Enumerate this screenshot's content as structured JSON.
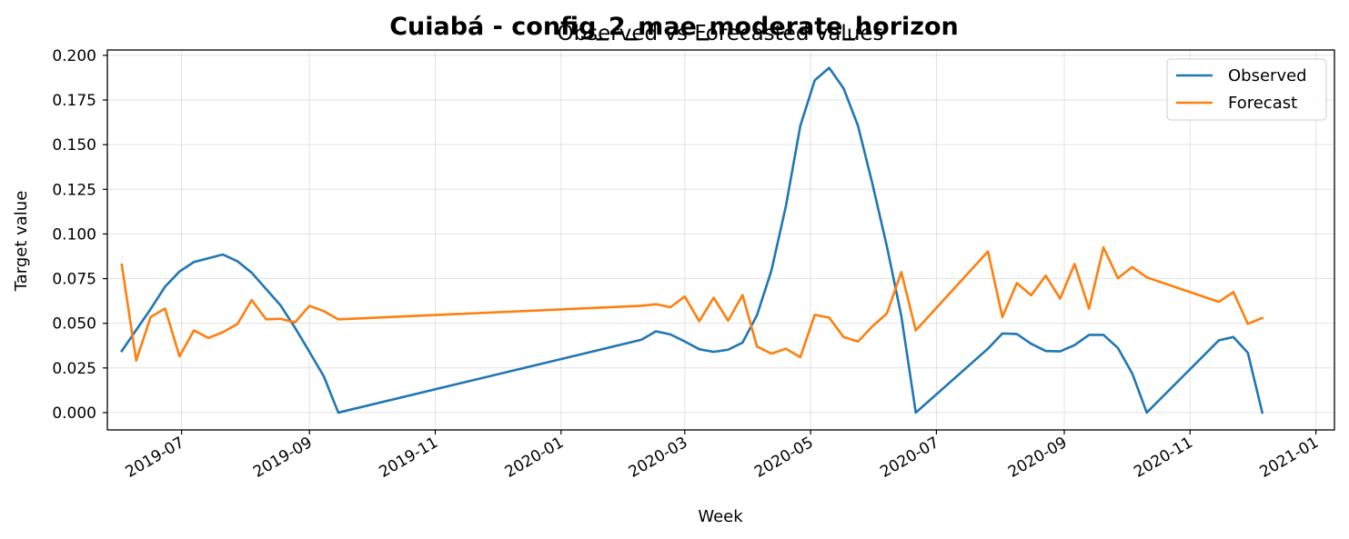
{
  "chart_data": {
    "type": "line",
    "suptitle": "Cuiabá - config_2_mae_moderate_horizon",
    "title": "Observed vs Forecasted values",
    "xlabel": "Week",
    "ylabel": "Target value",
    "xlim": [
      "2019-05-26",
      "2021-01-10"
    ],
    "ylim": [
      -0.0097,
      0.203
    ],
    "grid": true,
    "legend_position": "top-right",
    "x_ticks": [
      "2019-07",
      "2019-09",
      "2019-11",
      "2020-01",
      "2020-03",
      "2020-05",
      "2020-07",
      "2020-09",
      "2020-11",
      "2021-01"
    ],
    "y_ticks": [
      "0.000",
      "0.025",
      "0.050",
      "0.075",
      "0.100",
      "0.125",
      "0.150",
      "0.175",
      "0.200"
    ],
    "series": [
      {
        "name": "Observed",
        "color": "#1f77b4",
        "points": [
          [
            "2019-06-02",
            0.0345
          ],
          [
            "2019-06-16",
            0.058
          ],
          [
            "2019-06-23",
            0.0705
          ],
          [
            "2019-06-30",
            0.079
          ],
          [
            "2019-07-07",
            0.0843
          ],
          [
            "2019-07-21",
            0.0885
          ],
          [
            "2019-07-28",
            0.0848
          ],
          [
            "2019-08-04",
            0.0783
          ],
          [
            "2019-08-18",
            0.06
          ],
          [
            "2019-08-25",
            0.0475
          ],
          [
            "2019-09-01",
            0.034
          ],
          [
            "2019-09-08",
            0.0202
          ],
          [
            "2019-09-15",
            0.0
          ],
          [
            "2020-02-09",
            0.0408
          ],
          [
            "2020-02-16",
            0.0455
          ],
          [
            "2020-02-23",
            0.0438
          ],
          [
            "2020-03-01",
            0.0398
          ],
          [
            "2020-03-08",
            0.0355
          ],
          [
            "2020-03-15",
            0.034
          ],
          [
            "2020-03-22",
            0.0352
          ],
          [
            "2020-03-29",
            0.0392
          ],
          [
            "2020-04-05",
            0.0545
          ],
          [
            "2020-04-12",
            0.0795
          ],
          [
            "2020-04-19",
            0.1155
          ],
          [
            "2020-04-26",
            0.1605
          ],
          [
            "2020-05-03",
            0.186
          ],
          [
            "2020-05-10",
            0.193
          ],
          [
            "2020-05-17",
            0.1815
          ],
          [
            "2020-05-24",
            0.1605
          ],
          [
            "2020-05-31",
            0.128
          ],
          [
            "2020-06-07",
            0.093
          ],
          [
            "2020-06-14",
            0.054
          ],
          [
            "2020-06-21",
            0.0
          ],
          [
            "2020-07-26",
            0.0358
          ],
          [
            "2020-08-02",
            0.0443
          ],
          [
            "2020-08-09",
            0.044
          ],
          [
            "2020-08-16",
            0.0385
          ],
          [
            "2020-08-23",
            0.0345
          ],
          [
            "2020-08-30",
            0.0343
          ],
          [
            "2020-09-06",
            0.0378
          ],
          [
            "2020-09-13",
            0.0435
          ],
          [
            "2020-09-20",
            0.0435
          ],
          [
            "2020-09-27",
            0.0362
          ],
          [
            "2020-10-04",
            0.0218
          ],
          [
            "2020-10-11",
            0.0
          ],
          [
            "2020-11-15",
            0.0405
          ],
          [
            "2020-11-22",
            0.0423
          ],
          [
            "2020-11-29",
            0.0335
          ],
          [
            "2020-12-06",
            0.0
          ]
        ]
      },
      {
        "name": "Forecast",
        "color": "#ff7f0e",
        "points": [
          [
            "2019-06-02",
            0.0828
          ],
          [
            "2019-06-09",
            0.0292
          ],
          [
            "2019-06-16",
            0.0535
          ],
          [
            "2019-06-23",
            0.0582
          ],
          [
            "2019-06-30",
            0.0315
          ],
          [
            "2019-07-07",
            0.046
          ],
          [
            "2019-07-14",
            0.0418
          ],
          [
            "2019-07-21",
            0.045
          ],
          [
            "2019-07-28",
            0.0495
          ],
          [
            "2019-08-04",
            0.063
          ],
          [
            "2019-08-11",
            0.0522
          ],
          [
            "2019-08-18",
            0.0525
          ],
          [
            "2019-08-25",
            0.0505
          ],
          [
            "2019-09-01",
            0.0598
          ],
          [
            "2019-09-08",
            0.0568
          ],
          [
            "2019-09-15",
            0.0522
          ],
          [
            "2020-02-09",
            0.0598
          ],
          [
            "2020-02-16",
            0.0607
          ],
          [
            "2020-02-23",
            0.059
          ],
          [
            "2020-03-01",
            0.065
          ],
          [
            "2020-03-08",
            0.0512
          ],
          [
            "2020-03-15",
            0.0643
          ],
          [
            "2020-03-22",
            0.0515
          ],
          [
            "2020-03-29",
            0.0658
          ],
          [
            "2020-04-05",
            0.037
          ],
          [
            "2020-04-12",
            0.033
          ],
          [
            "2020-04-19",
            0.0358
          ],
          [
            "2020-04-26",
            0.031
          ],
          [
            "2020-05-03",
            0.0547
          ],
          [
            "2020-05-10",
            0.0532
          ],
          [
            "2020-05-17",
            0.0423
          ],
          [
            "2020-05-24",
            0.0398
          ],
          [
            "2020-05-31",
            0.0483
          ],
          [
            "2020-06-07",
            0.0555
          ],
          [
            "2020-06-14",
            0.0787
          ],
          [
            "2020-06-21",
            0.046
          ],
          [
            "2020-07-26",
            0.0902
          ],
          [
            "2020-08-02",
            0.0535
          ],
          [
            "2020-08-09",
            0.0725
          ],
          [
            "2020-08-16",
            0.0657
          ],
          [
            "2020-08-23",
            0.0767
          ],
          [
            "2020-08-30",
            0.0638
          ],
          [
            "2020-09-06",
            0.0832
          ],
          [
            "2020-09-13",
            0.0582
          ],
          [
            "2020-09-20",
            0.0925
          ],
          [
            "2020-09-27",
            0.0753
          ],
          [
            "2020-10-04",
            0.0815
          ],
          [
            "2020-10-11",
            0.0757
          ],
          [
            "2020-11-15",
            0.062
          ],
          [
            "2020-11-22",
            0.0675
          ],
          [
            "2020-11-29",
            0.0497
          ],
          [
            "2020-12-06",
            0.053
          ]
        ]
      }
    ]
  }
}
